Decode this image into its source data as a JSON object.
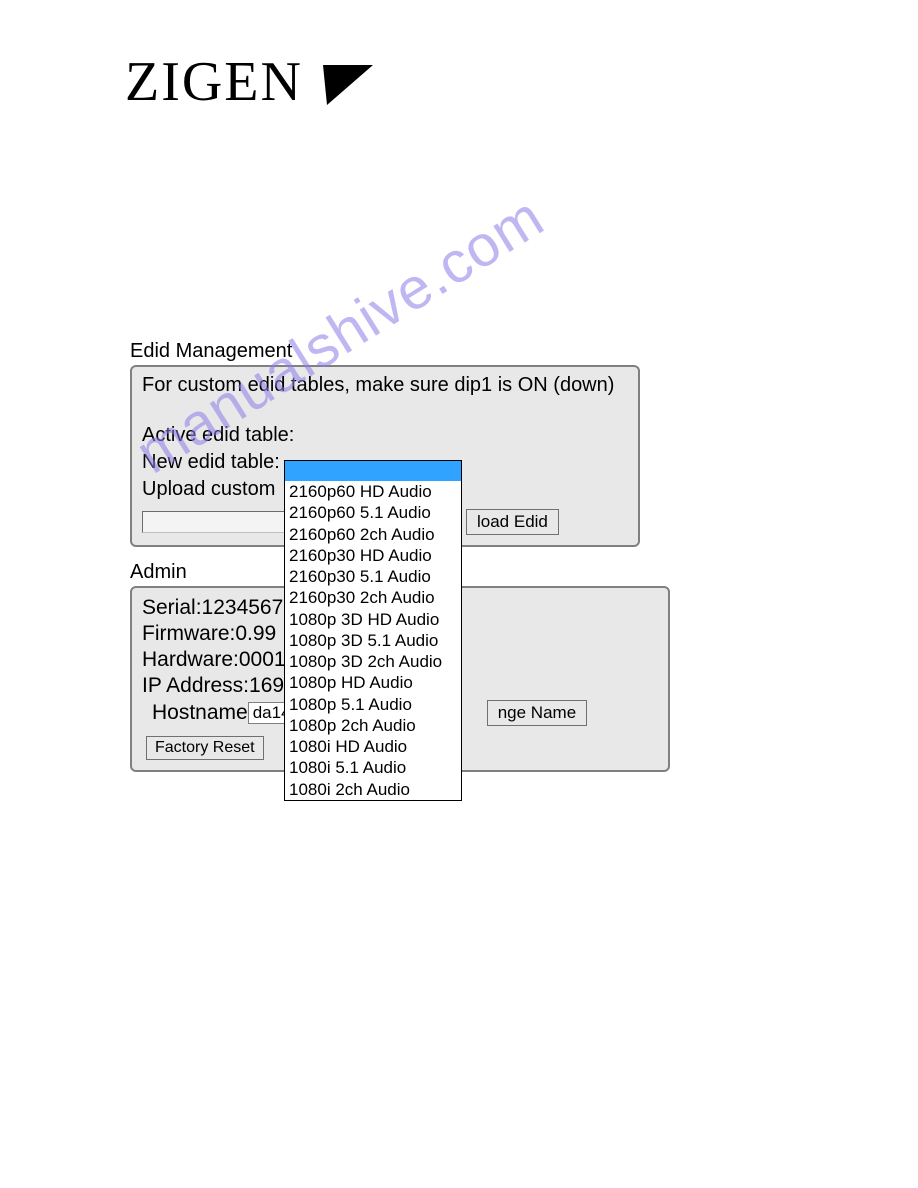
{
  "logo": {
    "text": "ZIGEN"
  },
  "watermark": {
    "text": "manualshive.com",
    "color": "#8b7de8"
  },
  "edid": {
    "title": "Edid Management",
    "instructions": "For custom edid tables, make sure dip1 is ON (down)",
    "active_label": "Active edid table:",
    "new_label": "New edid table:",
    "upload_label": "Upload custom",
    "upload_button_partial": "load Edid",
    "dropdown_options": [
      "2160p60 HD Audio",
      "2160p60 5.1 Audio",
      "2160p60 2ch Audio",
      "2160p30 HD Audio",
      "2160p30 5.1 Audio",
      "2160p30 2ch Audio",
      "1080p 3D HD Audio",
      "1080p 3D 5.1 Audio",
      "1080p 3D 2ch Audio",
      "1080p HD Audio",
      "1080p 5.1 Audio",
      "1080p 2ch Audio",
      "1080i HD Audio",
      "1080i 5.1 Audio",
      "1080i 2ch Audio"
    ]
  },
  "admin": {
    "title": "Admin",
    "serial_label": "Serial:",
    "serial_value": "12345678",
    "firmware_label": "Firmware:",
    "firmware_value": "0.99",
    "hardware_label": "Hardware:",
    "hardware_value": "0001",
    "ip_label": "IP Address:",
    "ip_value": "169",
    "hostname_label": "Hostname",
    "hostname_value": "da14",
    "change_name_partial": "nge Name",
    "factory_reset": "Factory Reset"
  },
  "colors": {
    "panel_bg": "#e8e8e8",
    "panel_border": "#808080",
    "dropdown_highlight": "#2fa3ff",
    "text": "#000000",
    "page_bg": "#ffffff"
  }
}
